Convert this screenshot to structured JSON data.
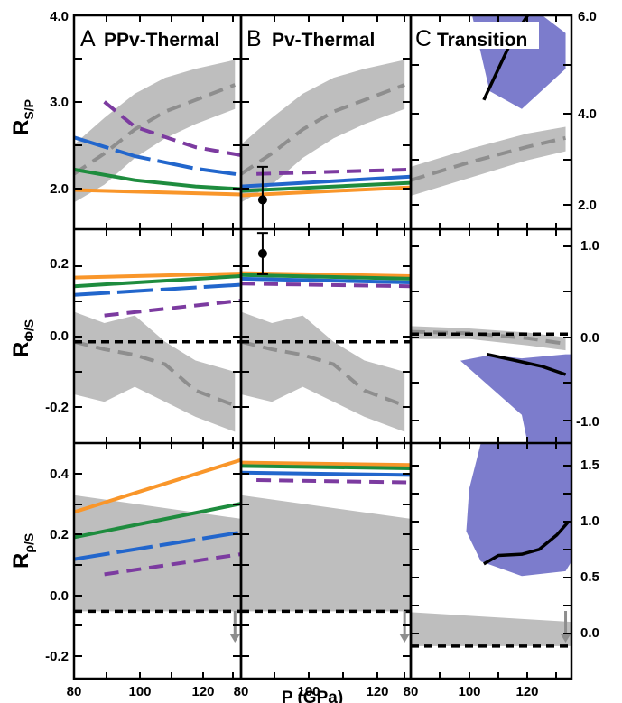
{
  "colors": {
    "orange": "#F9962A",
    "green": "#1E8C3E",
    "blue": "#2266CC",
    "purple": "#7C3BA0",
    "gray_band": "#BEBEBE",
    "gray_line": "#8E8E8E",
    "blue_region": "#7C7CCC",
    "black": "#000000"
  },
  "x_axis": {
    "label": "P (GPa)",
    "col_a_ticks": [
      "80",
      "100",
      "120"
    ],
    "col_b_ticks": [
      "80",
      "100",
      "120"
    ],
    "col_c_ticks": [
      "80",
      "100",
      "120"
    ]
  },
  "y_axes": {
    "row1": {
      "main": "R",
      "sub": "S/P",
      "left_ticks": [
        "4.0",
        "3.0",
        "2.0"
      ],
      "right_ticks": [
        "6.0",
        "4.0",
        "2.0"
      ]
    },
    "row2": {
      "main": "R",
      "sub": "Φ/S",
      "left_ticks": [
        "0.2",
        "0.0",
        "-0.2"
      ],
      "right_ticks": [
        "1.0",
        "0.0",
        "-1.0"
      ]
    },
    "row3": {
      "main": "R",
      "sub": "ρ/S",
      "left_ticks": [
        "0.4",
        "0.2",
        "0.0",
        "-0.2"
      ],
      "right_ticks": [
        "1.5",
        "1.0",
        "0.5",
        "0.0"
      ]
    }
  },
  "panel_labels": {
    "a": {
      "letter": "A",
      "title": "PPv-Thermal"
    },
    "b": {
      "letter": "B",
      "title": "Pv-Thermal"
    },
    "c": {
      "letter": "C",
      "title": "Transition"
    }
  },
  "chart_data": [
    {
      "type": "line",
      "panel": "A-top",
      "xlim": [
        80,
        135
      ],
      "ylim": [
        1.6,
        4.0
      ],
      "grid": false,
      "series": [
        {
          "color": "orange",
          "style": "solid",
          "x": [
            80,
            135
          ],
          "y": [
            2.04,
            1.99
          ]
        },
        {
          "color": "green",
          "style": "solid",
          "x": [
            80,
            100,
            120,
            135
          ],
          "y": [
            2.27,
            2.15,
            2.08,
            2.05
          ]
        },
        {
          "color": "blue",
          "style": "long-dash",
          "x": [
            80,
            100,
            120,
            135
          ],
          "y": [
            2.63,
            2.42,
            2.28,
            2.21
          ]
        },
        {
          "color": "purple",
          "style": "dashed",
          "x": [
            90,
            100,
            120,
            135
          ],
          "y": [
            3.03,
            2.75,
            2.52,
            2.43
          ]
        },
        {
          "color": "gray_line",
          "style": "dashed",
          "band": true,
          "x": [
            80,
            90,
            100,
            110,
            120,
            133
          ],
          "y": [
            2.22,
            2.45,
            2.72,
            2.92,
            3.05,
            3.22
          ],
          "y_low": [
            1.9,
            2.1,
            2.4,
            2.62,
            2.78,
            2.95
          ],
          "y_high": [
            2.55,
            2.85,
            3.12,
            3.3,
            3.4,
            3.5
          ]
        }
      ]
    },
    {
      "type": "line",
      "panel": "B-top",
      "xlim": [
        80,
        135
      ],
      "ylim": [
        1.6,
        4.0
      ],
      "grid": false,
      "series": [
        {
          "color": "orange",
          "style": "solid",
          "x": [
            80,
            135
          ],
          "y": [
            1.98,
            2.07
          ]
        },
        {
          "color": "green",
          "style": "solid",
          "x": [
            80,
            135
          ],
          "y": [
            2.03,
            2.12
          ]
        },
        {
          "color": "blue",
          "style": "solid",
          "x": [
            80,
            135
          ],
          "y": [
            2.08,
            2.19
          ]
        },
        {
          "color": "purple",
          "style": "dashed",
          "x": [
            85,
            135
          ],
          "y": [
            2.22,
            2.27
          ]
        },
        {
          "color": "black",
          "style": "point",
          "x": [
            87
          ],
          "y": [
            1.93
          ],
          "err_low": [
            1.52
          ],
          "err_high": [
            2.3
          ]
        },
        {
          "color": "gray_line",
          "style": "dashed",
          "band": true,
          "x": [
            80,
            90,
            100,
            110,
            120,
            133
          ],
          "y": [
            2.22,
            2.45,
            2.72,
            2.92,
            3.05,
            3.22
          ],
          "y_low": [
            1.9,
            2.1,
            2.4,
            2.62,
            2.78,
            2.95
          ],
          "y_high": [
            2.55,
            2.85,
            3.12,
            3.3,
            3.4,
            3.5
          ]
        }
      ]
    },
    {
      "type": "line",
      "panel": "C-top",
      "xlim": [
        80,
        135
      ],
      "ylim": [
        1.2,
        6.0
      ],
      "grid": false,
      "series": [
        {
          "color": "gray_line",
          "style": "dashed",
          "band": true,
          "x": [
            80,
            100,
            120,
            133
          ],
          "y": [
            2.3,
            2.7,
            3.05,
            3.25
          ],
          "y_low": [
            1.95,
            2.35,
            2.75,
            2.95
          ],
          "y_high": [
            2.6,
            3.0,
            3.35,
            3.5
          ]
        },
        {
          "color": "black",
          "style": "solid",
          "x": [
            105,
            110,
            115,
            120
          ],
          "y": [
            4.1,
            4.8,
            5.5,
            6.0
          ]
        },
        {
          "color": "blue_region",
          "style": "fill",
          "x": [
            101,
            107,
            118,
            133,
            133,
            125,
            115,
            106,
            101
          ],
          "y": [
            6.0,
            4.3,
            3.9,
            4.8,
            5.6,
            6.0,
            6.0,
            6.0,
            6.0
          ]
        }
      ]
    },
    {
      "type": "line",
      "panel": "A-middle",
      "xlim": [
        80,
        135
      ],
      "ylim": [
        -0.27,
        0.3
      ],
      "grid": false,
      "series": [
        {
          "color": "orange",
          "style": "solid",
          "x": [
            80,
            135
          ],
          "y": [
            0.171,
            0.182
          ]
        },
        {
          "color": "green",
          "style": "solid",
          "x": [
            80,
            135
          ],
          "y": [
            0.148,
            0.175
          ]
        },
        {
          "color": "blue",
          "style": "long-dash",
          "x": [
            80,
            135
          ],
          "y": [
            0.125,
            0.152
          ]
        },
        {
          "color": "purple",
          "style": "dashed",
          "x": [
            90,
            135
          ],
          "y": [
            0.07,
            0.11
          ]
        },
        {
          "color": "black",
          "style": "dashed",
          "x": [
            80,
            135
          ],
          "y": [
            0.0,
            0.0
          ]
        },
        {
          "color": "gray_line",
          "style": "dashed",
          "band": true,
          "x": [
            80,
            90,
            100,
            110,
            120,
            133
          ],
          "y": [
            0.0,
            -0.02,
            -0.035,
            -0.06,
            -0.13,
            -0.17
          ],
          "y_low": [
            -0.14,
            -0.16,
            -0.12,
            -0.16,
            -0.2,
            -0.24
          ],
          "y_high": [
            0.08,
            0.05,
            0.07,
            0.0,
            -0.05,
            -0.08
          ]
        }
      ]
    },
    {
      "type": "line",
      "panel": "B-middle",
      "xlim": [
        80,
        135
      ],
      "ylim": [
        -0.27,
        0.3
      ],
      "grid": false,
      "series": [
        {
          "color": "orange",
          "style": "solid",
          "x": [
            80,
            135
          ],
          "y": [
            0.183,
            0.175
          ]
        },
        {
          "color": "green",
          "style": "solid",
          "x": [
            80,
            135
          ],
          "y": [
            0.178,
            0.168
          ]
        },
        {
          "color": "blue",
          "style": "solid",
          "x": [
            80,
            135
          ],
          "y": [
            0.168,
            0.158
          ]
        },
        {
          "color": "purple",
          "style": "dashed",
          "x": [
            80,
            135
          ],
          "y": [
            0.155,
            0.148
          ]
        },
        {
          "color": "black",
          "style": "point",
          "x": [
            87
          ],
          "y": [
            0.235
          ],
          "err_low": [
            0.18
          ],
          "err_high": [
            0.29
          ]
        },
        {
          "color": "black",
          "style": "dashed",
          "x": [
            80,
            135
          ],
          "y": [
            0.0,
            0.0
          ]
        },
        {
          "color": "gray_line",
          "style": "dashed",
          "band": true,
          "x": [
            80,
            90,
            100,
            110,
            120,
            133
          ],
          "y": [
            0.0,
            -0.02,
            -0.035,
            -0.06,
            -0.13,
            -0.17
          ],
          "y_low": [
            -0.14,
            -0.16,
            -0.12,
            -0.16,
            -0.2,
            -0.24
          ],
          "y_high": [
            0.08,
            0.05,
            0.07,
            0.0,
            -0.05,
            -0.08
          ]
        }
      ]
    },
    {
      "type": "line",
      "panel": "C-middle",
      "xlim": [
        80,
        135
      ],
      "ylim": [
        -1.35,
        1.3
      ],
      "grid": false,
      "series": [
        {
          "color": "black",
          "style": "dashed",
          "x": [
            80,
            135
          ],
          "y": [
            0.0,
            0.0
          ]
        },
        {
          "color": "gray_line",
          "style": "dashed",
          "band": true,
          "x": [
            80,
            100,
            120,
            133
          ],
          "y": [
            0.03,
            0.01,
            -0.05,
            -0.12
          ],
          "y_low": [
            -0.06,
            -0.06,
            -0.14,
            -0.2
          ],
          "y_high": [
            0.1,
            0.07,
            0.02,
            -0.04
          ]
        },
        {
          "color": "blue_region",
          "style": "fill",
          "x": [
            97,
            107,
            118,
            133,
            135,
            135,
            128,
            120,
            118
          ],
          "y": [
            -0.33,
            -0.26,
            -0.3,
            -0.25,
            -0.25,
            -1.35,
            -1.35,
            -1.35,
            -1.0
          ]
        },
        {
          "color": "black",
          "style": "solid",
          "x": [
            106,
            115,
            125,
            133
          ],
          "y": [
            -0.25,
            -0.32,
            -0.4,
            -0.5
          ]
        }
      ]
    },
    {
      "type": "line",
      "panel": "A-bottom",
      "xlim": [
        80,
        135
      ],
      "ylim": [
        -0.2,
        0.5
      ],
      "grid": false,
      "series": [
        {
          "color": "orange",
          "style": "solid",
          "x": [
            80,
            135
          ],
          "y": [
            0.295,
            0.45
          ]
        },
        {
          "color": "green",
          "style": "solid",
          "x": [
            80,
            135
          ],
          "y": [
            0.22,
            0.32
          ]
        },
        {
          "color": "blue",
          "style": "long-dash",
          "x": [
            80,
            135
          ],
          "y": [
            0.155,
            0.235
          ]
        },
        {
          "color": "purple",
          "style": "dashed",
          "x": [
            90,
            135
          ],
          "y": [
            0.11,
            0.17
          ]
        },
        {
          "color": "black",
          "style": "dashed",
          "x": [
            80,
            135
          ],
          "y": [
            0.0,
            0.0
          ]
        },
        {
          "color": "gray_band",
          "style": "fill",
          "x": [
            80,
            135,
            135,
            80
          ],
          "y": [
            0.345,
            0.275,
            0.0,
            0.0
          ]
        },
        {
          "color": "gray_line",
          "style": "arrow",
          "x": [
            133
          ],
          "y": [
            -0.06
          ]
        }
      ]
    },
    {
      "type": "line",
      "panel": "B-bottom",
      "xlim": [
        80,
        135
      ],
      "ylim": [
        -0.2,
        0.5
      ],
      "grid": false,
      "series": [
        {
          "color": "orange",
          "style": "solid",
          "x": [
            80,
            135
          ],
          "y": [
            0.442,
            0.435
          ]
        },
        {
          "color": "green",
          "style": "solid",
          "x": [
            80,
            135
          ],
          "y": [
            0.432,
            0.425
          ]
        },
        {
          "color": "blue",
          "style": "solid",
          "x": [
            80,
            135
          ],
          "y": [
            0.412,
            0.405
          ]
        },
        {
          "color": "purple",
          "style": "dashed",
          "x": [
            85,
            135
          ],
          "y": [
            0.39,
            0.383
          ]
        },
        {
          "color": "black",
          "style": "dashed",
          "x": [
            80,
            135
          ],
          "y": [
            0.0,
            0.0
          ]
        },
        {
          "color": "gray_band",
          "style": "fill",
          "x": [
            80,
            135,
            135,
            80
          ],
          "y": [
            0.345,
            0.275,
            0.0,
            0.0
          ]
        },
        {
          "color": "gray_line",
          "style": "arrow",
          "x": [
            133
          ],
          "y": [
            -0.06
          ]
        }
      ]
    },
    {
      "type": "line",
      "panel": "C-bottom",
      "xlim": [
        80,
        135
      ],
      "ylim": [
        -0.27,
        1.68
      ],
      "grid": false,
      "series": [
        {
          "color": "black",
          "style": "dashed",
          "x": [
            80,
            135
          ],
          "y": [
            0.0,
            0.0
          ]
        },
        {
          "color": "gray_band",
          "style": "fill",
          "x": [
            80,
            135,
            135,
            80
          ],
          "y": [
            0.28,
            0.2,
            0.0,
            0.0
          ]
        },
        {
          "color": "blue_region",
          "style": "fill",
          "x": [
            104,
            100,
            99,
            104,
            118,
            133,
            135,
            135,
            118
          ],
          "y": [
            1.68,
            1.3,
            0.95,
            0.7,
            0.58,
            0.62,
            0.7,
            1.68,
            1.68
          ]
        },
        {
          "color": "black",
          "style": "solid",
          "x": [
            105,
            110,
            118,
            124,
            130,
            134
          ],
          "y": [
            0.68,
            0.75,
            0.76,
            0.8,
            0.92,
            1.03
          ]
        },
        {
          "color": "gray_line",
          "style": "arrow",
          "x": [
            133
          ],
          "y": [
            -0.13
          ]
        }
      ]
    }
  ]
}
